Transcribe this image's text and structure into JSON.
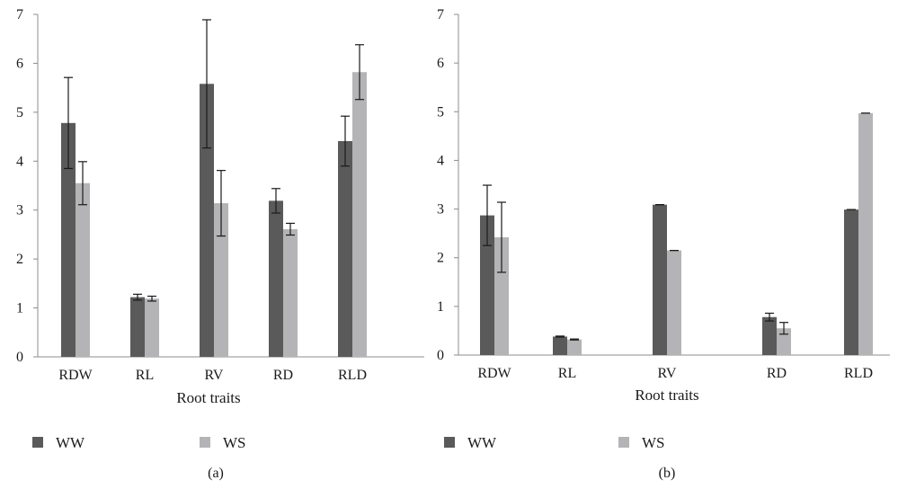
{
  "colors": {
    "ww": "#5a5a5a",
    "ws": "#b4b4b6",
    "axis": "#8c8c8c",
    "errorbar": "#1a1a1a"
  },
  "chart_data": [
    {
      "type": "bar",
      "caption": "(a)",
      "xlabel": "Root traits",
      "ylabel": "",
      "ylim": [
        0,
        7
      ],
      "yticks": [
        "0",
        "1",
        "2",
        "3",
        "4",
        "5",
        "6",
        "7"
      ],
      "categories": [
        "RDW",
        "RL",
        "RV",
        "RD",
        "RLD"
      ],
      "grid": false,
      "legend": "bottom",
      "series": [
        {
          "name": "WW",
          "color_key": "ww",
          "values": [
            4.78,
            1.22,
            5.58,
            3.19,
            4.41
          ],
          "errors": [
            0.93,
            0.06,
            1.31,
            0.25,
            0.51
          ]
        },
        {
          "name": "WS",
          "color_key": "ws",
          "values": [
            3.55,
            1.19,
            3.14,
            2.61,
            5.82
          ],
          "errors": [
            0.44,
            0.05,
            0.67,
            0.12,
            0.56
          ]
        }
      ]
    },
    {
      "type": "bar",
      "caption": "(b)",
      "xlabel": "Root traits",
      "ylabel": "",
      "ylim": [
        0,
        7
      ],
      "yticks": [
        "0",
        "1",
        "2",
        "3",
        "4",
        "5",
        "6",
        "7"
      ],
      "categories": [
        "RDW",
        "RL",
        "RV",
        "RD",
        "RLD"
      ],
      "grid": false,
      "legend": "bottom",
      "series": [
        {
          "name": "WW",
          "color_key": "ww",
          "values": [
            2.87,
            0.38,
            3.09,
            0.78,
            2.99
          ],
          "errors": [
            0.62,
            0.01,
            0.0,
            0.08,
            0.0
          ]
        },
        {
          "name": "WS",
          "color_key": "ws",
          "values": [
            2.42,
            0.32,
            2.15,
            0.55,
            4.97
          ],
          "errors": [
            0.72,
            0.01,
            0.0,
            0.12,
            0.0
          ]
        }
      ]
    }
  ]
}
